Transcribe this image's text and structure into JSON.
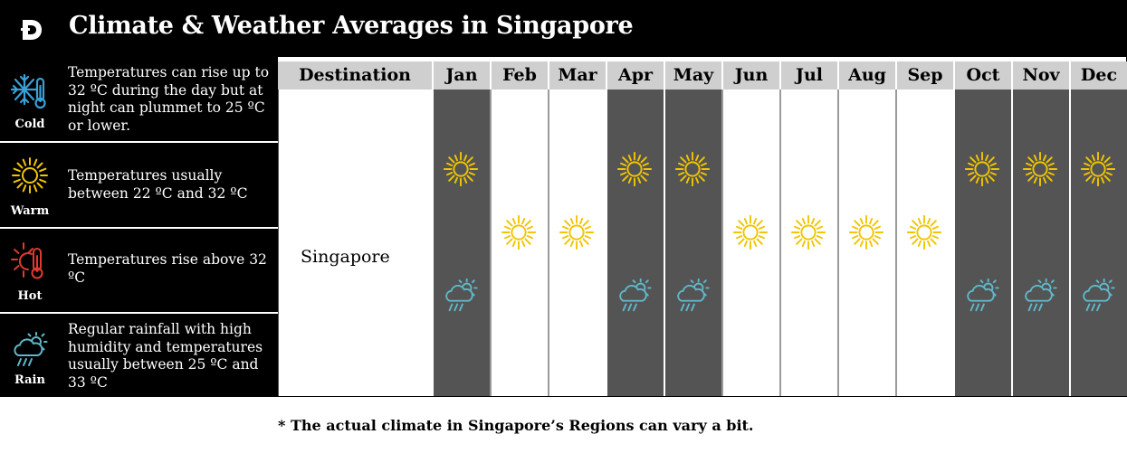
{
  "header": {
    "logo_letter": "D",
    "title": "Climate & Weather Averages in Singapore"
  },
  "legend": [
    {
      "key": "cold",
      "icon": "snowflake-thermometer-icon",
      "label": "Cold",
      "text": "Temperatures can rise up to 32 ºC during the day but at night can plummet to 25 ºC or lower."
    },
    {
      "key": "warm",
      "icon": "sun-icon",
      "label": "Warm",
      "text": "Temperatures usually between 22 ºC and 32 ºC"
    },
    {
      "key": "hot",
      "icon": "sun-thermometer-icon",
      "label": "Hot",
      "text": "Temperatures rise above 32 ºC"
    },
    {
      "key": "rain",
      "icon": "rain-cloud-sun-icon",
      "label": "Rain",
      "text": "Regular rainfall with high humidity and temperatures usually between 25 ºC and 33 ºC"
    }
  ],
  "table": {
    "destination_header": "Destination",
    "destination": "Singapore",
    "months": [
      {
        "name": "Jan",
        "shade": "dark",
        "icons": [
          "warm",
          "rain"
        ]
      },
      {
        "name": "Feb",
        "shade": "light",
        "icons": [
          "warm"
        ]
      },
      {
        "name": "Mar",
        "shade": "light",
        "icons": [
          "warm"
        ]
      },
      {
        "name": "Apr",
        "shade": "dark",
        "icons": [
          "warm",
          "rain"
        ]
      },
      {
        "name": "May",
        "shade": "dark",
        "icons": [
          "warm",
          "rain"
        ]
      },
      {
        "name": "Jun",
        "shade": "light",
        "icons": [
          "warm"
        ]
      },
      {
        "name": "Jul",
        "shade": "light",
        "icons": [
          "warm"
        ]
      },
      {
        "name": "Aug",
        "shade": "light",
        "icons": [
          "warm"
        ]
      },
      {
        "name": "Sep",
        "shade": "light",
        "icons": [
          "warm"
        ]
      },
      {
        "name": "Oct",
        "shade": "dark",
        "icons": [
          "warm",
          "rain"
        ]
      },
      {
        "name": "Nov",
        "shade": "dark",
        "icons": [
          "warm",
          "rain"
        ]
      },
      {
        "name": "Dec",
        "shade": "dark",
        "icons": [
          "warm",
          "rain"
        ]
      }
    ]
  },
  "footnote": "* The actual climate in Singapore’s Regions can vary a bit.",
  "colors": {
    "sun": "#f2c500",
    "cold": "#3aa0d8",
    "hot": "#e03a2f",
    "rain": "#5fb8c9",
    "dark_cell": "#545454",
    "header_cell": "#cfcfcf"
  }
}
